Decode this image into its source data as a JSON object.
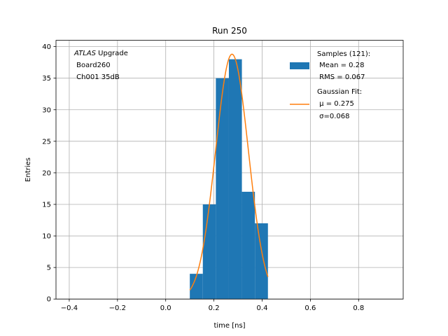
{
  "chart_data": {
    "type": "bar",
    "title": "Run 250",
    "xlabel": "time [ns]",
    "ylabel": "Entries",
    "xlim": [
      -0.455,
      0.985
    ],
    "ylim": [
      0,
      41
    ],
    "grid": true,
    "xticks": [
      -0.4,
      -0.2,
      0.0,
      0.2,
      0.4,
      0.6,
      0.8
    ],
    "xtick_labels": [
      "−0.4",
      "−0.2",
      "0.0",
      "0.2",
      "0.4",
      "0.6",
      "0.8"
    ],
    "yticks": [
      0,
      5,
      10,
      15,
      20,
      25,
      30,
      35,
      40
    ],
    "ytick_labels": [
      "0",
      "5",
      "10",
      "15",
      "20",
      "25",
      "30",
      "35",
      "40"
    ],
    "histogram": {
      "name": "Samples",
      "color": "#1f77b4",
      "bins": [
        {
          "x0": 0.1,
          "x1": 0.154,
          "count": 4
        },
        {
          "x0": 0.154,
          "x1": 0.208,
          "count": 15
        },
        {
          "x0": 0.208,
          "x1": 0.262,
          "count": 35
        },
        {
          "x0": 0.262,
          "x1": 0.316,
          "count": 38
        },
        {
          "x0": 0.316,
          "x1": 0.37,
          "count": 17
        },
        {
          "x0": 0.37,
          "x1": 0.424,
          "count": 12
        }
      ]
    },
    "fit": {
      "name": "Gaussian Fit",
      "color": "#ff7f0e",
      "amplitude": 38.8,
      "mu": 0.275,
      "sigma": 0.068,
      "x_range": [
        0.1,
        0.424
      ]
    },
    "annotation": {
      "italic": "ATLAS",
      "suffix": " Upgrade",
      "line2": " Board260",
      "line3": " Ch001 35dB"
    },
    "legend": {
      "position": "top-right",
      "entries": [
        {
          "kind": "patch",
          "lines": [
            "Samples (121):",
            " Mean = 0.28",
            " RMS = 0.067"
          ]
        },
        {
          "kind": "line",
          "lines": [
            "Gaussian Fit:",
            " μ = 0.275",
            " σ=0.068"
          ]
        }
      ]
    }
  }
}
